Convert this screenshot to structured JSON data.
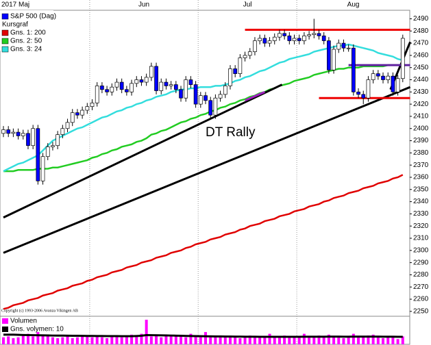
{
  "chart_data": {
    "type": "candlestick",
    "categories": [
      "2017 Maj",
      null,
      null,
      null,
      null,
      null,
      null,
      null,
      null,
      null,
      null,
      null,
      null,
      null,
      null,
      null,
      null,
      null,
      "Jun",
      null,
      null,
      null,
      null,
      null,
      null,
      null,
      null,
      null,
      null,
      null,
      null,
      null,
      null,
      null,
      null,
      null,
      null,
      null,
      null,
      null,
      "Jul",
      null,
      null,
      null,
      null,
      null,
      null,
      null,
      null,
      null,
      null,
      null,
      null,
      null,
      null,
      null,
      null,
      null,
      null,
      null,
      "Aug",
      null,
      null,
      null,
      null,
      null,
      null,
      null,
      null,
      null,
      null,
      null,
      null,
      null,
      null,
      null,
      null,
      null,
      null,
      null,
      null,
      null
    ],
    "ylim": [
      2246,
      2497
    ],
    "yticks": [
      2250,
      2260,
      2270,
      2280,
      2290,
      2300,
      2310,
      2320,
      2330,
      2340,
      2350,
      2360,
      2370,
      2380,
      2390,
      2400,
      2410,
      2420,
      2430,
      2440,
      2450,
      2460,
      2470,
      2480,
      2490
    ],
    "legend_header": "Kursgraf",
    "series": [
      {
        "name": "S&P 500 (Dag)",
        "color": "#0000ff",
        "up_color": "#ffffff",
        "open": [
          2396,
          2399,
          2396,
          2397,
          2394,
          2396,
          2386,
          2400,
          2357,
          2377,
          2385,
          2386,
          2395,
          2400,
          2405,
          2413,
          2411,
          2415,
          2418,
          2421,
          2435,
          2432,
          2430,
          2434,
          2438,
          2432,
          2430,
          2437,
          2440,
          2438,
          2442,
          2451,
          2431,
          2438,
          2435,
          2436,
          2432,
          2425,
          2440,
          2436,
          2420,
          2427,
          2423,
          2411,
          2425,
          2428,
          2435,
          2449,
          2445,
          2458,
          2460,
          2463,
          2472,
          2474,
          2470,
          2472,
          2475,
          2478,
          2476,
          2472,
          2474,
          2472,
          2476,
          2477,
          2478,
          2476,
          2472,
          2448,
          2465,
          2470,
          2466,
          2466,
          2430,
          2428,
          2425,
          2440,
          2445,
          2443,
          2440,
          2443,
          2430,
          2441
        ],
        "high": [
          2402,
          2402,
          2400,
          2400,
          2399,
          2399,
          2403,
          2403,
          2380,
          2388,
          2389,
          2398,
          2403,
          2408,
          2416,
          2416,
          2418,
          2421,
          2424,
          2438,
          2438,
          2435,
          2437,
          2441,
          2441,
          2435,
          2440,
          2443,
          2443,
          2445,
          2454,
          2454,
          2441,
          2441,
          2439,
          2439,
          2435,
          2443,
          2443,
          2439,
          2430,
          2430,
          2426,
          2428,
          2431,
          2438,
          2452,
          2452,
          2461,
          2463,
          2466,
          2475,
          2477,
          2477,
          2475,
          2478,
          2481,
          2481,
          2479,
          2477,
          2477,
          2479,
          2480,
          2490,
          2481,
          2479,
          2475,
          2468,
          2473,
          2473,
          2469,
          2469,
          2433,
          2431,
          2443,
          2448,
          2448,
          2446,
          2446,
          2446,
          2444,
          2477
        ],
        "low": [
          2393,
          2393,
          2393,
          2391,
          2391,
          2383,
          2383,
          2354,
          2354,
          2374,
          2382,
          2383,
          2392,
          2397,
          2402,
          2408,
          2408,
          2412,
          2415,
          2418,
          2429,
          2427,
          2427,
          2431,
          2429,
          2427,
          2427,
          2434,
          2435,
          2435,
          2439,
          2428,
          2428,
          2432,
          2432,
          2429,
          2422,
          2422,
          2433,
          2417,
          2417,
          2420,
          2408,
          2408,
          2422,
          2425,
          2432,
          2442,
          2442,
          2455,
          2457,
          2460,
          2469,
          2467,
          2467,
          2469,
          2472,
          2473,
          2469,
          2469,
          2469,
          2469,
          2473,
          2474,
          2473,
          2469,
          2445,
          2445,
          2462,
          2463,
          2463,
          2427,
          2425,
          2420,
          2422,
          2437,
          2440,
          2437,
          2437,
          2427,
          2427,
          2438
        ],
        "close": [
          2399,
          2396,
          2397,
          2394,
          2396,
          2386,
          2400,
          2357,
          2377,
          2385,
          2386,
          2395,
          2400,
          2405,
          2413,
          2411,
          2415,
          2418,
          2421,
          2435,
          2432,
          2430,
          2434,
          2438,
          2432,
          2430,
          2437,
          2440,
          2438,
          2442,
          2451,
          2431,
          2438,
          2435,
          2436,
          2432,
          2425,
          2440,
          2436,
          2420,
          2427,
          2423,
          2411,
          2425,
          2428,
          2435,
          2449,
          2445,
          2458,
          2460,
          2463,
          2472,
          2474,
          2470,
          2472,
          2475,
          2478,
          2476,
          2472,
          2474,
          2472,
          2476,
          2477,
          2478,
          2476,
          2472,
          2448,
          2465,
          2470,
          2466,
          2466,
          2430,
          2428,
          2425,
          2440,
          2445,
          2443,
          2440,
          2443,
          2430,
          2441,
          2474
        ]
      }
    ],
    "moving_averages": [
      {
        "name": "Gns. 1: 200",
        "color": "#e00000",
        "values": [
          2252,
          2253,
          2255,
          2256,
          2257,
          2259,
          2260,
          2261,
          2263,
          2264,
          2265,
          2267,
          2268,
          2269,
          2271,
          2272,
          2273,
          2275,
          2276,
          2278,
          2279,
          2280,
          2282,
          2283,
          2284,
          2286,
          2287,
          2288,
          2290,
          2291,
          2292,
          2294,
          2295,
          2296,
          2298,
          2299,
          2300,
          2302,
          2303,
          2305,
          2306,
          2307,
          2309,
          2310,
          2311,
          2313,
          2314,
          2315,
          2317,
          2318,
          2320,
          2321,
          2322,
          2324,
          2325,
          2326,
          2328,
          2329,
          2330,
          2332,
          2333,
          2334,
          2336,
          2337,
          2338,
          2340,
          2341,
          2343,
          2344,
          2345,
          2347,
          2348,
          2349,
          2351,
          2352,
          2353,
          2355,
          2356,
          2357,
          2359,
          2360,
          2362
        ]
      },
      {
        "name": "Gns. 2: 50",
        "color": "#22cc22",
        "values": [
          2365,
          2365,
          2365,
          2366,
          2366,
          2366,
          2366,
          2367,
          2367,
          2367,
          2368,
          2368,
          2369,
          2370,
          2371,
          2372,
          2373,
          2374,
          2376,
          2377,
          2379,
          2380,
          2382,
          2383,
          2385,
          2386,
          2387,
          2389,
          2390,
          2392,
          2395,
          2396,
          2398,
          2399,
          2401,
          2403,
          2405,
          2406,
          2408,
          2409,
          2411,
          2412,
          2414,
          2415,
          2417,
          2418,
          2420,
          2421,
          2423,
          2424,
          2426,
          2427,
          2429,
          2430,
          2432,
          2433,
          2435,
          2436,
          2437,
          2439,
          2440,
          2441,
          2442,
          2444,
          2445,
          2446,
          2447,
          2448,
          2449,
          2449,
          2450,
          2450,
          2450,
          2451,
          2451,
          2451,
          2451,
          2451,
          2452,
          2452,
          2452,
          2452
        ]
      },
      {
        "name": "Gns. 3: 24",
        "color": "#33dddd",
        "values": [
          2365,
          2367,
          2369,
          2371,
          2372,
          2374,
          2376,
          2378,
          2382,
          2386,
          2390,
          2392,
          2394,
          2396,
          2398,
          2400,
          2401,
          2403,
          2405,
          2407,
          2409,
          2410,
          2412,
          2414,
          2415,
          2417,
          2418,
          2420,
          2421,
          2423,
          2424,
          2426,
          2427,
          2428,
          2430,
          2431,
          2432,
          2432,
          2433,
          2433,
          2434,
          2434,
          2434,
          2435,
          2435,
          2436,
          2437,
          2439,
          2440,
          2442,
          2443,
          2445,
          2447,
          2448,
          2450,
          2452,
          2454,
          2455,
          2457,
          2458,
          2459,
          2460,
          2461,
          2463,
          2464,
          2465,
          2466,
          2467,
          2468,
          2468,
          2469,
          2468,
          2467,
          2466,
          2465,
          2464,
          2462,
          2461,
          2460,
          2459,
          2457,
          2456
        ]
      }
    ],
    "trend_lines": [
      {
        "color": "#000000",
        "points": [
          [
            0,
            2327
          ],
          [
            56.5,
            2436
          ]
        ]
      },
      {
        "color": "#a020c0",
        "points": [
          [
            49,
            2423
          ],
          [
            53,
            2430
          ]
        ]
      },
      {
        "color": "#000000",
        "points": [
          [
            0,
            2298
          ],
          [
            82.5,
            2434
          ]
        ]
      },
      {
        "color": "#000000",
        "points": [
          [
            78.5,
            2432
          ],
          [
            82.5,
            2471
          ]
        ]
      },
      {
        "color": "#ee0000",
        "points": [
          [
            49,
            2481
          ],
          [
            82.5,
            2481
          ]
        ]
      },
      {
        "color": "#ee0000",
        "points": [
          [
            64,
            2425
          ],
          [
            82.5,
            2425
          ]
        ]
      },
      {
        "color": "#6020a0",
        "points": [
          [
            70,
            2452
          ],
          [
            82.5,
            2452
          ]
        ]
      }
    ],
    "annotation": "DT Rally",
    "copyright": "Copyright (c) 1993-2006 Avanza Vikingen AB",
    "volume": {
      "name": "Volumen",
      "color": "#ff00ff",
      "vlim": [
        0,
        32
      ],
      "values": [
        8,
        9,
        7,
        8,
        10,
        12,
        9,
        14,
        11,
        9,
        8,
        7,
        8,
        9,
        7,
        8,
        10,
        9,
        8,
        9,
        8,
        7,
        9,
        10,
        8,
        9,
        11,
        9,
        12,
        28,
        9,
        10,
        8,
        9,
        11,
        10,
        9,
        8,
        12,
        10,
        9,
        14,
        8,
        9,
        10,
        8,
        9,
        8,
        7,
        9,
        10,
        8,
        9,
        8,
        12,
        9,
        8,
        10,
        9,
        8,
        9,
        12,
        8,
        9,
        10,
        8,
        11,
        9,
        8,
        7,
        8,
        12,
        9,
        8,
        10,
        11,
        8,
        7,
        9,
        8,
        6,
        9
      ],
      "average": {
        "name": "Gns. volymen: 10",
        "color": "#000000",
        "values": [
          11,
          11,
          11,
          10.8,
          10.6,
          10.5,
          10.4,
          10.3,
          10.2,
          10.1,
          10,
          10,
          10,
          9.9,
          9.8,
          9.8,
          9.7,
          9.6,
          9.6,
          9.5,
          9.5,
          9.4,
          9.4,
          9.4,
          9.3,
          9.3,
          9.3,
          9.5,
          9.8,
          10.5,
          10.4,
          10.3,
          10.2,
          10.1,
          10,
          9.9,
          9.8,
          9.6,
          9.5,
          9.4,
          9.3,
          9.2,
          9.1,
          9,
          9,
          8.9,
          8.9,
          8.8,
          8.8,
          8.7,
          8.7,
          8.7,
          8.6,
          8.6,
          8.6,
          8.6,
          8.6,
          8.6,
          8.6,
          8.6,
          8.6,
          8.7,
          8.7,
          8.7,
          8.7,
          8.7,
          8.8,
          8.8,
          8.8,
          8.7,
          8.7,
          8.8,
          8.8,
          8.8,
          8.8,
          8.8,
          8.8,
          8.7,
          8.7,
          8.7,
          8.6,
          8.6
        ]
      }
    }
  }
}
